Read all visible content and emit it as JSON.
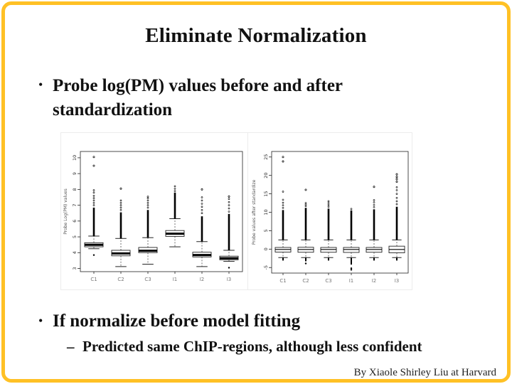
{
  "slide": {
    "title": "Eliminate Normalization",
    "credit": "By Xiaole Shirley Liu at Harvard",
    "border_color": "#FFC125",
    "background_color": "#FFFFFF",
    "text_color": "#111111"
  },
  "bullets": [
    {
      "marker": "•",
      "text": "Probe log(PM) values before and after standardization"
    },
    {
      "marker": "•",
      "text": "If normalize before model fitting"
    }
  ],
  "sub_bullet": {
    "marker": "–",
    "text": "Predicted same ChIP-regions, although less confident"
  },
  "chart_data": [
    {
      "type": "boxplot",
      "title": "",
      "xlabel": "",
      "ylabel": "Probe Log(PM) values",
      "ylim": [
        2.8,
        10.4
      ],
      "yticks": [
        3,
        4,
        5,
        6,
        7,
        8,
        9,
        10
      ],
      "grid": false,
      "categories": [
        "C1",
        "C2",
        "C3",
        "I1",
        "I2",
        "I3"
      ],
      "boxes": [
        {
          "q1": 4.37,
          "med": 4.5,
          "q3": 4.63,
          "lo": 4.25,
          "hi": 5.05,
          "dense": [
            5.05,
            6.85
          ],
          "pts": [
            7.0,
            7.15,
            7.3,
            7.45,
            7.6,
            7.8,
            7.95
          ],
          "extra": [
            9.5,
            10.05
          ],
          "lo_pts": [
            3.85
          ]
        },
        {
          "q1": 3.8,
          "med": 3.95,
          "q3": 4.15,
          "lo": 3.12,
          "hi": 4.9,
          "dense": [
            4.9,
            6.55
          ],
          "pts": [
            6.7,
            6.85,
            7.0,
            7.15,
            7.3
          ],
          "extra": [
            8.05
          ],
          "lo_pts": []
        },
        {
          "q1": 4.0,
          "med": 4.12,
          "q3": 4.33,
          "lo": 3.27,
          "hi": 4.95,
          "dense": [
            4.95,
            6.7
          ],
          "pts": [
            6.85,
            7.0,
            7.15,
            7.3,
            7.45,
            7.55
          ],
          "extra": [],
          "lo_pts": []
        },
        {
          "q1": 5.03,
          "med": 5.2,
          "q3": 5.4,
          "lo": 4.37,
          "hi": 6.15,
          "dense": [
            6.15,
            7.8
          ],
          "pts": [
            7.9,
            8.05,
            8.2
          ],
          "extra": [],
          "lo_pts": []
        },
        {
          "q1": 3.73,
          "med": 3.85,
          "q3": 4.03,
          "lo": 3.12,
          "hi": 4.7,
          "dense": [
            4.7,
            6.3
          ],
          "pts": [
            6.5,
            6.7,
            6.9,
            7.1,
            7.3,
            7.5
          ],
          "extra": [
            8.0
          ],
          "lo_pts": []
        },
        {
          "q1": 3.55,
          "med": 3.65,
          "q3": 3.78,
          "lo": 3.45,
          "hi": 4.15,
          "dense": [
            4.15,
            6.45
          ],
          "pts": [
            6.6,
            6.8,
            7.0,
            7.2,
            7.4
          ],
          "extra": [
            7.55
          ],
          "lo_pts": [
            3.05
          ]
        }
      ]
    },
    {
      "type": "boxplot",
      "title": "",
      "xlabel": "",
      "ylabel": "Probe values after standardize",
      "ylim": [
        -6.5,
        26.5
      ],
      "yticks": [
        -5,
        0,
        5,
        10,
        15,
        20,
        25
      ],
      "grid": false,
      "categories": [
        "C1",
        "C2",
        "C3",
        "I1",
        "I2",
        "I3"
      ],
      "boxes": [
        {
          "q1": -0.8,
          "med": -0.1,
          "q3": 0.45,
          "lo": -2.3,
          "hi": 2.5,
          "dense": [
            2.5,
            10.6
          ],
          "lo_dense": [
            -3.1,
            -2.3
          ],
          "pts": [
            11.2,
            11.9,
            12.6,
            13.4,
            15.6
          ],
          "extra": [
            23.8,
            25.0
          ],
          "lo_pts": []
        },
        {
          "q1": -0.85,
          "med": -0.1,
          "q3": 0.5,
          "lo": -2.3,
          "hi": 2.5,
          "dense": [
            2.5,
            11.2
          ],
          "lo_dense": [
            -3.3,
            -2.3
          ],
          "pts": [
            11.7,
            12.1,
            12.5
          ],
          "extra": [
            16.1
          ],
          "lo_pts": [
            -3.9
          ]
        },
        {
          "q1": -0.85,
          "med": -0.1,
          "q3": 0.45,
          "lo": -2.3,
          "hi": 2.5,
          "dense": [
            2.5,
            11.0
          ],
          "lo_dense": [
            -3.1,
            -2.3
          ],
          "pts": [
            11.5,
            12.0,
            12.5,
            13.0
          ],
          "extra": [],
          "lo_pts": []
        },
        {
          "q1": -0.9,
          "med": -0.1,
          "q3": 0.45,
          "lo": -2.3,
          "hi": 2.5,
          "dense": [
            2.5,
            10.5
          ],
          "lo_dense": [
            -4.2,
            -2.3
          ],
          "pts": [
            10.9
          ],
          "extra": [],
          "lo_pts": [
            -5.2,
            -5.6
          ]
        },
        {
          "q1": -0.85,
          "med": -0.1,
          "q3": 0.45,
          "lo": -2.3,
          "hi": 2.5,
          "dense": [
            2.5,
            10.8
          ],
          "lo_dense": [
            -3.1,
            -2.3
          ],
          "pts": [
            11.4,
            12.0,
            12.7,
            13.3
          ],
          "extra": [
            16.9
          ],
          "lo_pts": []
        },
        {
          "q1": -1.0,
          "med": -0.1,
          "q3": 0.8,
          "lo": -2.3,
          "hi": 2.5,
          "dense": [
            2.5,
            11.5
          ],
          "lo_dense": [
            -3.1,
            -2.3
          ],
          "pts": [
            12.2,
            13.0,
            13.9,
            15.0,
            16.0,
            16.8
          ],
          "extra": [
            18.3,
            19.0,
            19.6,
            20.3
          ],
          "lo_pts": []
        }
      ]
    }
  ]
}
